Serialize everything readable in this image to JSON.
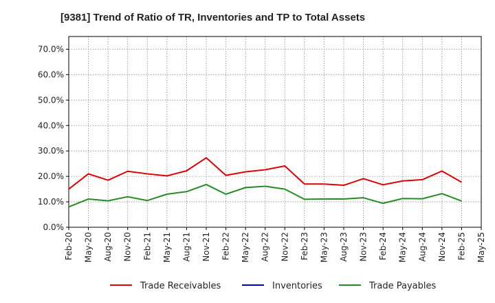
{
  "chart_data": {
    "type": "line",
    "title": "[9381]  Trend of Ratio of TR, Inventories and TP to Total Assets",
    "xlabel": "",
    "ylabel": "",
    "x_ticks": [
      "Feb-20",
      "May-20",
      "Aug-20",
      "Nov-20",
      "Feb-21",
      "May-21",
      "Aug-21",
      "Nov-21",
      "Feb-22",
      "May-22",
      "Aug-22",
      "Nov-22",
      "Feb-23",
      "May-23",
      "Aug-23",
      "Nov-23",
      "Feb-24",
      "May-24",
      "Aug-24",
      "Nov-24",
      "Feb-25",
      "May-25"
    ],
    "y_ticks": [
      "0.0%",
      "10.0%",
      "20.0%",
      "30.0%",
      "40.0%",
      "50.0%",
      "60.0%",
      "70.0%"
    ],
    "ylim": [
      0,
      75
    ],
    "grid": true,
    "legend_position": "bottom",
    "series": [
      {
        "name": "Trade Receivables",
        "color": "#e00000",
        "x": [
          "Feb-20",
          "May-20",
          "Aug-20",
          "Nov-20",
          "Feb-21",
          "May-21",
          "Aug-21",
          "Nov-21",
          "Feb-22",
          "May-22",
          "Aug-22",
          "Nov-22",
          "Feb-23",
          "May-23",
          "Aug-23",
          "Nov-23",
          "Feb-24",
          "May-24",
          "Aug-24",
          "Nov-24",
          "Feb-25"
        ],
        "values": [
          15.0,
          21.0,
          18.5,
          22.0,
          21.0,
          20.2,
          22.2,
          27.3,
          20.4,
          21.8,
          22.6,
          24.1,
          17.0,
          17.0,
          16.5,
          19.1,
          16.7,
          18.2,
          18.7,
          22.1,
          17.7
        ]
      },
      {
        "name": "Inventories",
        "color": "#0000cc",
        "x": [],
        "values": []
      },
      {
        "name": "Trade Payables",
        "color": "#228b22",
        "x": [
          "Feb-20",
          "May-20",
          "Aug-20",
          "Nov-20",
          "Feb-21",
          "May-21",
          "Aug-21",
          "Nov-21",
          "Feb-22",
          "May-22",
          "Aug-22",
          "Nov-22",
          "Feb-23",
          "May-23",
          "Aug-23",
          "Nov-23",
          "Feb-24",
          "May-24",
          "Aug-24",
          "Nov-24",
          "Feb-25"
        ],
        "values": [
          8.0,
          11.1,
          10.4,
          12.0,
          10.5,
          13.0,
          14.0,
          16.8,
          13.0,
          15.6,
          16.1,
          15.0,
          11.0,
          11.1,
          11.1,
          11.6,
          9.4,
          11.3,
          11.2,
          13.2,
          10.3
        ]
      }
    ]
  }
}
